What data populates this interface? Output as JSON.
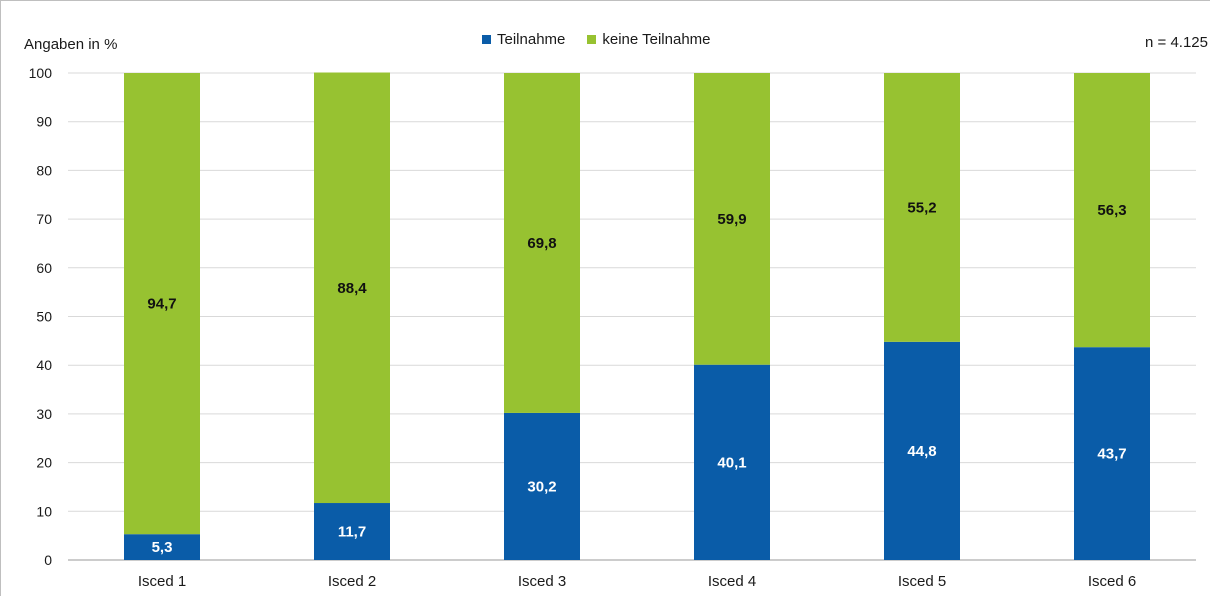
{
  "chart_data": {
    "type": "bar",
    "stacked": true,
    "unit_label": "Angaben in %",
    "sample_label": "n = 4.125",
    "categories": [
      "Isced 1",
      "Isced 2",
      "Isced 3",
      "Isced 4",
      "Isced 5",
      "Isced 6"
    ],
    "series": [
      {
        "name": "Teilnahme",
        "color": "#0a5ca8",
        "label_color": "#ffffff",
        "values": [
          5.3,
          11.7,
          30.2,
          40.1,
          44.8,
          43.7
        ],
        "labels": [
          "5,3",
          "11,7",
          "30,2",
          "40,1",
          "44,8",
          "43,7"
        ]
      },
      {
        "name": "keine Teilnahme",
        "color": "#97c231",
        "label_color": "#111111",
        "values": [
          94.7,
          88.4,
          69.8,
          59.9,
          55.2,
          56.3
        ],
        "labels": [
          "94,7",
          "88,4",
          "69,8",
          "59,9",
          "55,2",
          "56,3"
        ]
      }
    ],
    "ylim": [
      0,
      100
    ],
    "yticks": [
      "0",
      "10",
      "20",
      "30",
      "40",
      "50",
      "60",
      "70",
      "80",
      "90",
      "100"
    ],
    "grid": true,
    "legend_position": "top-center"
  }
}
